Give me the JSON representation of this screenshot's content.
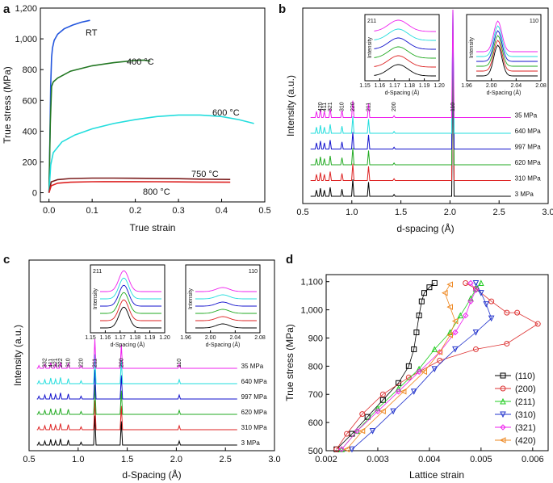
{
  "chart_data": [
    {
      "panel": "a",
      "type": "line",
      "xlabel": "True strain",
      "ylabel": "True stress (MPa)",
      "xlim": [
        -0.02,
        0.5
      ],
      "ylim": [
        -60,
        1200
      ],
      "xticks": [
        "0.0",
        "0.1",
        "0.2",
        "0.3",
        "0.4",
        "0.5"
      ],
      "xtick_values": [
        0.0,
        0.1,
        0.2,
        0.3,
        0.4,
        0.5
      ],
      "yticks": [
        "0",
        "200",
        "400",
        "600",
        "800",
        "1,000",
        "1,200"
      ],
      "ytick_values": [
        0,
        200,
        400,
        600,
        800,
        1000,
        1200
      ],
      "series": [
        {
          "name": "RT",
          "color": "#2255dd",
          "x": [
            0.0,
            0.002,
            0.004,
            0.006,
            0.008,
            0.012,
            0.02,
            0.035,
            0.055,
            0.075,
            0.095
          ],
          "y": [
            0,
            350,
            700,
            880,
            940,
            990,
            1030,
            1065,
            1090,
            1108,
            1120
          ]
        },
        {
          "name": "400 °C",
          "color": "#227722",
          "x": [
            0.0,
            0.003,
            0.006,
            0.01,
            0.02,
            0.05,
            0.1,
            0.15,
            0.2,
            0.22,
            0.235
          ],
          "y": [
            0,
            450,
            690,
            720,
            745,
            790,
            825,
            845,
            860,
            862,
            855
          ]
        },
        {
          "name": "600 °C",
          "color": "#22dddd",
          "x": [
            0.0,
            0.004,
            0.01,
            0.03,
            0.06,
            0.1,
            0.15,
            0.2,
            0.25,
            0.3,
            0.35,
            0.4,
            0.44,
            0.475
          ],
          "y": [
            0,
            180,
            260,
            330,
            375,
            415,
            450,
            475,
            495,
            505,
            505,
            495,
            475,
            450
          ]
        },
        {
          "name": "750 °C",
          "color": "#7a1c1c",
          "x": [
            0.0,
            0.005,
            0.02,
            0.05,
            0.1,
            0.15,
            0.2,
            0.25,
            0.3,
            0.35,
            0.42
          ],
          "y": [
            0,
            70,
            85,
            92,
            95,
            95,
            94,
            93,
            91,
            88,
            86
          ]
        },
        {
          "name": "800 °C",
          "color": "#dd2222",
          "x": [
            0.0,
            0.005,
            0.02,
            0.05,
            0.1,
            0.15,
            0.2,
            0.25,
            0.3,
            0.35,
            0.42
          ],
          "y": [
            0,
            45,
            62,
            68,
            71,
            72,
            72,
            71,
            70,
            69,
            68
          ]
        }
      ],
      "labels": [
        "RT",
        "400 °C",
        "600 °C",
        "750 °C",
        "800 °C"
      ]
    },
    {
      "panel": "b",
      "type": "line",
      "xlabel": "d-spacing (Å)",
      "ylabel": "Intensity (a.u.)",
      "xlim": [
        0.5,
        3.0
      ],
      "xticks": [
        "0.5",
        "1.0",
        "1.5",
        "2.0",
        "2.5",
        "3.0"
      ],
      "xtick_values": [
        0.5,
        1.0,
        1.5,
        2.0,
        2.5,
        3.0
      ],
      "series_labels": [
        "3 MPa",
        "310 MPa",
        "620 MPa",
        "997 MPa",
        "640 MPa",
        "35 MPa"
      ],
      "series_colors": [
        "#000000",
        "#dd2222",
        "#22aa22",
        "#1111cc",
        "#22dddd",
        "#ee22ee"
      ],
      "peaks": [
        {
          "d": 0.64,
          "h": 0.35
        },
        {
          "d": 0.68,
          "h": 0.45
        },
        {
          "d": 0.72,
          "h": 0.35
        },
        {
          "d": 0.78,
          "h": 0.5
        },
        {
          "d": 0.9,
          "h": 0.4
        },
        {
          "d": 1.01,
          "h": 0.95
        },
        {
          "d": 1.17,
          "h": 0.8
        },
        {
          "d": 1.43,
          "h": 0.1
        },
        {
          "d": 2.03,
          "h": 8.0
        }
      ],
      "peak_labels": [
        "420",
        "411",
        "321",
        "310",
        "220",
        "211",
        "200",
        "110"
      ],
      "inset_left": {
        "title": "211",
        "ylabel": "Intensity",
        "xlabel": "d-Spacing (Å)",
        "xticks": [
          "1.15",
          "1.16",
          "1.17",
          "1.18",
          "1.19",
          "1.20"
        ]
      },
      "inset_right": {
        "title": "110",
        "ylabel": "Intensity",
        "xlabel": "d-Spacing (Å)",
        "xticks": [
          "1.96",
          "2.00",
          "2.04",
          "2.08"
        ]
      }
    },
    {
      "panel": "c",
      "type": "line",
      "xlabel": "d-Spacing (Å)",
      "ylabel": "Intensity (a.u.)",
      "xlim": [
        0.5,
        3.0
      ],
      "xticks": [
        "0.5",
        "1.0",
        "1.5",
        "2.0",
        "2.5",
        "3.0"
      ],
      "xtick_values": [
        0.5,
        1.0,
        1.5,
        2.0,
        2.5,
        3.0
      ],
      "series_labels": [
        "3 MPa",
        "310 MPa",
        "620 MPa",
        "997 MPa",
        "640 MPa",
        "35 MPa"
      ],
      "series_colors": [
        "#000000",
        "#dd2222",
        "#22aa22",
        "#1111cc",
        "#22dddd",
        "#ee22ee"
      ],
      "peaks": [
        {
          "d": 0.6,
          "h": 0.25
        },
        {
          "d": 0.66,
          "h": 0.35
        },
        {
          "d": 0.72,
          "h": 0.5
        },
        {
          "d": 0.77,
          "h": 0.4
        },
        {
          "d": 0.82,
          "h": 0.55
        },
        {
          "d": 0.9,
          "h": 0.45
        },
        {
          "d": 1.03,
          "h": 0.25
        },
        {
          "d": 1.17,
          "h": 2.6
        },
        {
          "d": 1.44,
          "h": 2.1
        },
        {
          "d": 2.03,
          "h": 0.35
        }
      ],
      "peak_labels": [
        "332",
        "411",
        "321",
        "222",
        "310",
        "220",
        "211",
        "200",
        "110"
      ],
      "inset_left": {
        "title": "211",
        "ylabel": "Intensity",
        "xlabel": "d-Spacing (Å)",
        "xticks": [
          "1.15",
          "1.16",
          "1.17",
          "1.18",
          "1.19",
          "1.20"
        ]
      },
      "inset_right": {
        "title": "110",
        "ylabel": "Intensity",
        "xlabel": "d-Spacing (Å)",
        "xticks": [
          "1.96",
          "2.00",
          "2.04",
          "2.08"
        ]
      }
    },
    {
      "panel": "d",
      "type": "scatter",
      "xlabel": "Lattice strain",
      "ylabel": "True stress (MPa)",
      "xlim": [
        0.002,
        0.0063
      ],
      "ylim": [
        500,
        1125
      ],
      "xticks": [
        "0.002",
        "0.003",
        "0.004",
        "0.005",
        "0.006"
      ],
      "xtick_values": [
        0.002,
        0.003,
        0.004,
        0.005,
        0.006
      ],
      "yticks": [
        "500",
        "600",
        "700",
        "800",
        "900",
        "1,000",
        "1,100"
      ],
      "ytick_values": [
        500,
        600,
        700,
        800,
        900,
        1000,
        1100
      ],
      "series": [
        {
          "name": "(110)",
          "color": "#000000",
          "marker": "square",
          "x": [
            0.0022,
            0.0025,
            0.0028,
            0.0031,
            0.0034,
            0.0036,
            0.0037,
            0.00375,
            0.0038,
            0.00385,
            0.0039,
            0.004,
            0.0041
          ],
          "y": [
            505,
            560,
            620,
            680,
            740,
            800,
            860,
            920,
            980,
            1030,
            1060,
            1080,
            1095
          ]
        },
        {
          "name": "(200)",
          "color": "#dd3333",
          "marker": "circle",
          "x": [
            0.0022,
            0.0024,
            0.0027,
            0.0031,
            0.0036,
            0.0042,
            0.0049,
            0.0055,
            0.0061,
            0.0057,
            0.0055,
            0.0052,
            0.0049,
            0.0047
          ],
          "y": [
            505,
            560,
            630,
            700,
            760,
            820,
            860,
            880,
            950,
            990,
            990,
            1030,
            1075,
            1095
          ]
        },
        {
          "name": "(211)",
          "color": "#22cc22",
          "marker": "triangle-up",
          "x": [
            0.0023,
            0.0026,
            0.003,
            0.0034,
            0.0038,
            0.0041,
            0.0044,
            0.0046,
            0.0048,
            0.0049,
            0.005
          ],
          "y": [
            505,
            570,
            650,
            720,
            790,
            860,
            920,
            980,
            1040,
            1075,
            1095
          ]
        },
        {
          "name": "(310)",
          "color": "#2233cc",
          "marker": "triangle-down",
          "x": [
            0.0025,
            0.0029,
            0.0033,
            0.0037,
            0.0041,
            0.0045,
            0.0049,
            0.0052,
            0.0051,
            0.005,
            0.0049
          ],
          "y": [
            505,
            570,
            640,
            710,
            790,
            860,
            920,
            970,
            1020,
            1060,
            1095
          ]
        },
        {
          "name": "(321)",
          "color": "#ee22ee",
          "marker": "diamond",
          "x": [
            0.0023,
            0.0026,
            0.003,
            0.0034,
            0.0038,
            0.0042,
            0.0045,
            0.0047,
            0.0048,
            0.0049,
            0.0048
          ],
          "y": [
            505,
            570,
            640,
            710,
            780,
            850,
            920,
            980,
            1030,
            1070,
            1095
          ]
        },
        {
          "name": "(420)",
          "color": "#ee8822",
          "marker": "triangle-left",
          "x": [
            0.0024,
            0.0027,
            0.0031,
            0.0035,
            0.0039,
            0.0042,
            0.0044,
            0.0045,
            0.0044,
            0.0043,
            0.0044
          ],
          "y": [
            505,
            570,
            640,
            710,
            780,
            850,
            910,
            960,
            1010,
            1060,
            1090
          ]
        }
      ]
    }
  ]
}
